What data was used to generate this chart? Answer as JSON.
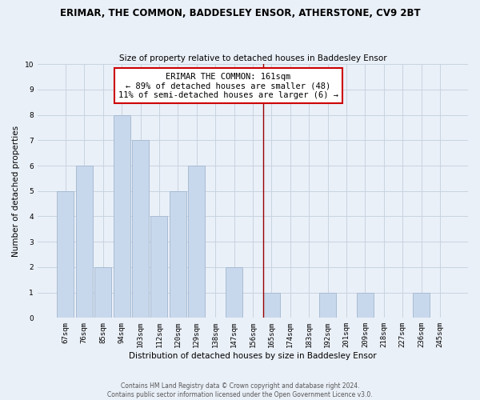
{
  "title": "ERIMAR, THE COMMON, BADDESLEY ENSOR, ATHERSTONE, CV9 2BT",
  "subtitle": "Size of property relative to detached houses in Baddesley Ensor",
  "xlabel": "Distribution of detached houses by size in Baddesley Ensor",
  "ylabel": "Number of detached properties",
  "bar_labels": [
    "67sqm",
    "76sqm",
    "85sqm",
    "94sqm",
    "103sqm",
    "112sqm",
    "120sqm",
    "129sqm",
    "138sqm",
    "147sqm",
    "156sqm",
    "165sqm",
    "174sqm",
    "183sqm",
    "192sqm",
    "201sqm",
    "209sqm",
    "218sqm",
    "227sqm",
    "236sqm",
    "245sqm"
  ],
  "bar_values": [
    5,
    6,
    2,
    8,
    7,
    4,
    5,
    6,
    0,
    2,
    0,
    1,
    0,
    0,
    1,
    0,
    1,
    0,
    0,
    1,
    0
  ],
  "bar_color": "#c8d8ec",
  "bar_edge_color": "#a8bcd4",
  "ylim": [
    0,
    10
  ],
  "yticks": [
    0,
    1,
    2,
    3,
    4,
    5,
    6,
    7,
    8,
    9,
    10
  ],
  "grid_color": "#c8d4e0",
  "bg_color": "#eaf0f8",
  "annotation_title": "ERIMAR THE COMMON: 161sqm",
  "annotation_line1": "← 89% of detached houses are smaller (48)",
  "annotation_line2": "11% of semi-detached houses are larger (6) →",
  "annotation_box_color": "#ffffff",
  "annotation_border_color": "#cc0000",
  "vline_color": "#990000",
  "footer_line1": "Contains HM Land Registry data © Crown copyright and database right 2024.",
  "footer_line2": "Contains public sector information licensed under the Open Government Licence v3.0.",
  "title_fontsize": 8.5,
  "subtitle_fontsize": 7.5,
  "axis_label_fontsize": 7.5,
  "tick_fontsize": 6.5,
  "annotation_fontsize": 7.5,
  "footer_fontsize": 5.5
}
